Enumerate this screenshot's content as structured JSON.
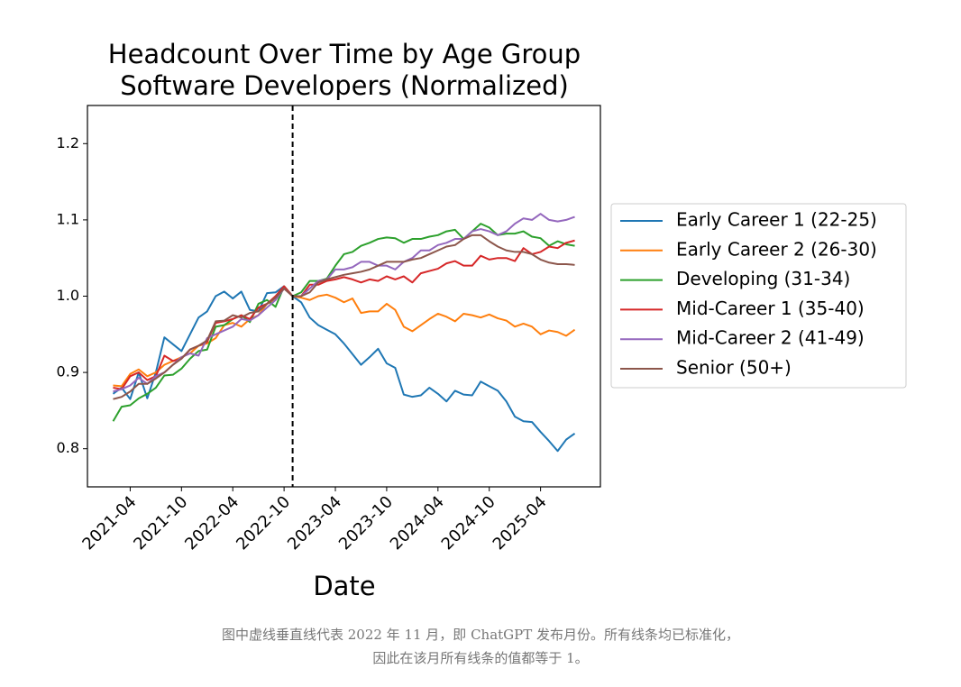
{
  "chart_data": {
    "type": "line",
    "title": [
      "Headcount Over Time by Age Group",
      "Software Developers (Normalized)"
    ],
    "xlabel": "Date",
    "x": [
      "2021-02",
      "2021-03",
      "2021-04",
      "2021-05",
      "2021-06",
      "2021-07",
      "2021-08",
      "2021-09",
      "2021-10",
      "2021-11",
      "2021-12",
      "2022-01",
      "2022-02",
      "2022-03",
      "2022-04",
      "2022-05",
      "2022-06",
      "2022-07",
      "2022-08",
      "2022-09",
      "2022-10",
      "2022-11",
      "2022-12",
      "2023-01",
      "2023-02",
      "2023-03",
      "2023-04",
      "2023-05",
      "2023-06",
      "2023-07",
      "2023-08",
      "2023-09",
      "2023-10",
      "2023-11",
      "2023-12",
      "2024-01",
      "2024-02",
      "2024-03",
      "2024-04",
      "2024-05",
      "2024-06",
      "2024-07",
      "2024-08",
      "2024-09",
      "2024-10",
      "2024-11",
      "2024-12",
      "2025-01",
      "2025-02",
      "2025-03",
      "2025-04",
      "2025-05",
      "2025-06",
      "2025-07",
      "2025-08"
    ],
    "series": [
      {
        "name": "Early Career 1 (22-25)",
        "color": "#1f77b4",
        "values": [
          0.872,
          0.88,
          0.865,
          0.9,
          0.866,
          0.9,
          0.946,
          0.937,
          0.928,
          0.95,
          0.972,
          0.98,
          1.0,
          1.006,
          0.997,
          1.006,
          0.982,
          0.98,
          1.004,
          1.005,
          1.013,
          1.0,
          0.992,
          0.972,
          0.962,
          0.956,
          0.95,
          0.938,
          0.924,
          0.91,
          0.92,
          0.931,
          0.912,
          0.906,
          0.871,
          0.868,
          0.87,
          0.88,
          0.872,
          0.862,
          0.876,
          0.871,
          0.87,
          0.888,
          0.882,
          0.876,
          0.862,
          0.842,
          0.836,
          0.835,
          0.822,
          0.81,
          0.797,
          0.812,
          0.82
        ]
      },
      {
        "name": "Early Career 2 (26-30)",
        "color": "#ff7f0e",
        "values": [
          0.883,
          0.882,
          0.898,
          0.904,
          0.895,
          0.9,
          0.91,
          0.915,
          0.92,
          0.925,
          0.935,
          0.938,
          0.945,
          0.962,
          0.965,
          0.96,
          0.97,
          0.975,
          0.99,
          0.995,
          1.01,
          1.0,
          0.998,
          0.995,
          1.0,
          1.002,
          0.998,
          0.992,
          0.997,
          0.978,
          0.98,
          0.98,
          0.99,
          0.982,
          0.96,
          0.954,
          0.962,
          0.97,
          0.977,
          0.973,
          0.967,
          0.977,
          0.975,
          0.972,
          0.976,
          0.971,
          0.968,
          0.96,
          0.964,
          0.96,
          0.95,
          0.955,
          0.953,
          0.948,
          0.956
        ]
      },
      {
        "name": "Developing (31-34)",
        "color": "#2ca02c",
        "values": [
          0.836,
          0.855,
          0.857,
          0.866,
          0.872,
          0.88,
          0.896,
          0.897,
          0.905,
          0.918,
          0.928,
          0.93,
          0.96,
          0.962,
          0.97,
          0.975,
          0.966,
          0.99,
          0.995,
          0.986,
          1.013,
          1.0,
          1.005,
          1.02,
          1.02,
          1.023,
          1.04,
          1.055,
          1.058,
          1.066,
          1.07,
          1.075,
          1.077,
          1.076,
          1.07,
          1.075,
          1.075,
          1.078,
          1.08,
          1.085,
          1.087,
          1.075,
          1.085,
          1.095,
          1.09,
          1.08,
          1.082,
          1.082,
          1.085,
          1.078,
          1.076,
          1.066,
          1.072,
          1.068,
          1.066
        ]
      },
      {
        "name": "Mid-Career 1 (35-40)",
        "color": "#d62728",
        "values": [
          0.88,
          0.878,
          0.895,
          0.9,
          0.89,
          0.895,
          0.922,
          0.915,
          0.918,
          0.93,
          0.935,
          0.94,
          0.965,
          0.967,
          0.97,
          0.975,
          0.97,
          0.985,
          0.99,
          1.0,
          1.013,
          1.0,
          1.0,
          1.015,
          1.015,
          1.02,
          1.022,
          1.025,
          1.022,
          1.018,
          1.022,
          1.02,
          1.026,
          1.022,
          1.026,
          1.018,
          1.03,
          1.033,
          1.036,
          1.043,
          1.046,
          1.04,
          1.04,
          1.053,
          1.048,
          1.05,
          1.05,
          1.046,
          1.063,
          1.055,
          1.058,
          1.065,
          1.063,
          1.07,
          1.073
        ]
      },
      {
        "name": "Mid-Career 2 (41-49)",
        "color": "#9467bd",
        "values": [
          0.875,
          0.878,
          0.883,
          0.893,
          0.885,
          0.895,
          0.9,
          0.91,
          0.92,
          0.925,
          0.922,
          0.945,
          0.95,
          0.955,
          0.96,
          0.97,
          0.968,
          0.975,
          0.985,
          0.995,
          1.01,
          1.0,
          1.0,
          1.01,
          1.02,
          1.022,
          1.035,
          1.035,
          1.038,
          1.045,
          1.045,
          1.04,
          1.04,
          1.035,
          1.045,
          1.05,
          1.06,
          1.06,
          1.067,
          1.07,
          1.075,
          1.075,
          1.085,
          1.088,
          1.085,
          1.08,
          1.085,
          1.095,
          1.102,
          1.1,
          1.108,
          1.1,
          1.098,
          1.1,
          1.104
        ]
      },
      {
        "name": "Senior (50+)",
        "color": "#8c564b",
        "values": [
          0.865,
          0.868,
          0.875,
          0.885,
          0.885,
          0.892,
          0.9,
          0.91,
          0.918,
          0.93,
          0.935,
          0.942,
          0.967,
          0.968,
          0.975,
          0.972,
          0.978,
          0.98,
          0.99,
          0.998,
          1.01,
          1.0,
          1.0,
          1.005,
          1.018,
          1.022,
          1.025,
          1.028,
          1.03,
          1.032,
          1.035,
          1.04,
          1.045,
          1.045,
          1.045,
          1.048,
          1.05,
          1.055,
          1.06,
          1.065,
          1.067,
          1.075,
          1.08,
          1.08,
          1.072,
          1.065,
          1.06,
          1.058,
          1.058,
          1.055,
          1.048,
          1.044,
          1.042,
          1.042,
          1.041
        ]
      }
    ],
    "vline": "2022-11",
    "xlim": [
      "2020-11",
      "2025-11"
    ],
    "xticks": [
      "2021-04",
      "2021-10",
      "2022-04",
      "2022-10",
      "2023-04",
      "2023-10",
      "2024-04",
      "2024-10",
      "2025-04"
    ],
    "ylim": [
      0.75,
      1.25
    ],
    "yticks": [
      0.8,
      0.9,
      {
        "value": 1,
        "label": "1.0"
      },
      1.1,
      1.2
    ],
    "grid": false,
    "legend": "right"
  },
  "caption": [
    "图中虚线垂直线代表 2022 年 11 月，即 ChatGPT 发布月份。所有线条均已标准化，",
    "因此在该月所有线条的值都等于 1。"
  ]
}
